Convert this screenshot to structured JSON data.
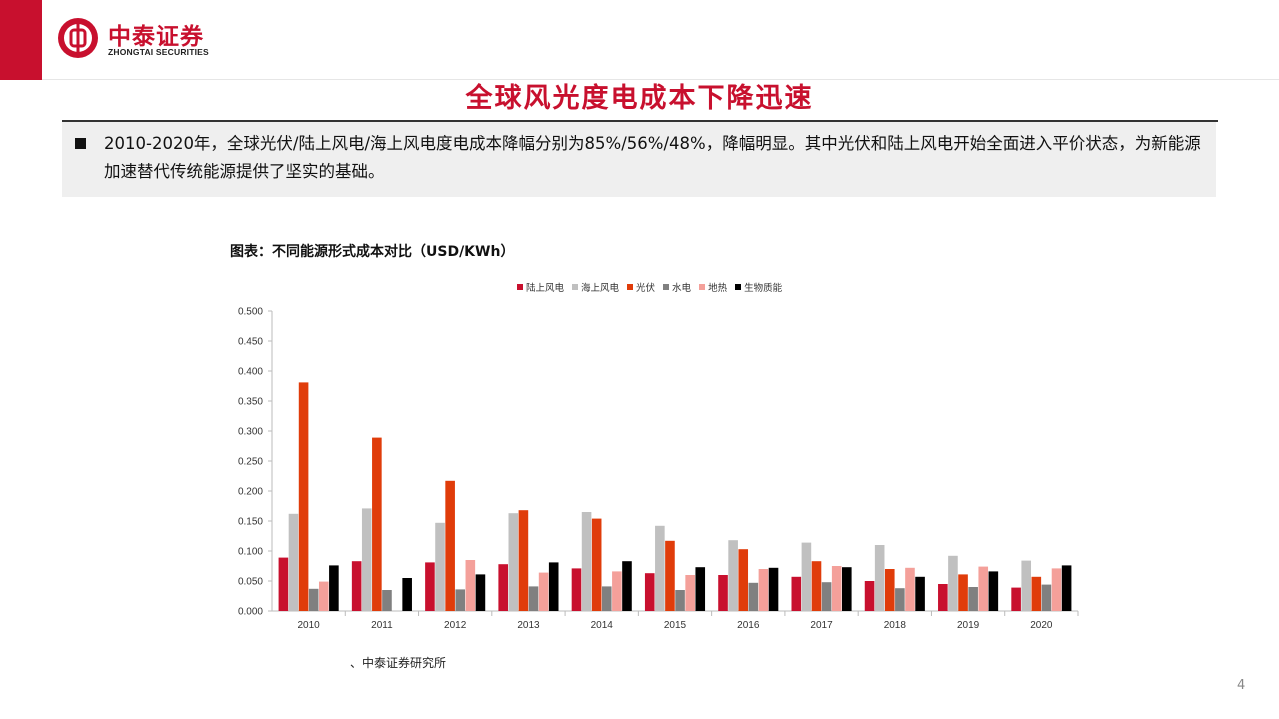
{
  "brand": {
    "name_cn": "中泰证券",
    "name_en": "ZHONGTAI SECURITIES",
    "color": "#c8102e",
    "logo_icon": "zhongtai-logo-icon"
  },
  "slide": {
    "title": "全球风光度电成本下降迅速",
    "bullet": "2010-2020年，全球光伏/陆上风电/海上风电度电成本降幅分别为85%/56%/48%，降幅明显。其中光伏和陆上风电开始全面进入平价状态，为新能源加速替代传统能源提供了坚实的基础。",
    "source": "、中泰证券研究所",
    "page_number": "4"
  },
  "chart_data": {
    "type": "bar",
    "title": "图表：不同能源形式成本对比（USD/KWh）",
    "xlabel": "",
    "ylabel": "",
    "ylim": [
      0,
      0.5
    ],
    "yticks": [
      "0.000",
      "0.050",
      "0.100",
      "0.150",
      "0.200",
      "0.250",
      "0.300",
      "0.350",
      "0.400",
      "0.450",
      "0.500"
    ],
    "categories": [
      "2010",
      "2011",
      "2012",
      "2013",
      "2014",
      "2015",
      "2016",
      "2017",
      "2018",
      "2019",
      "2020"
    ],
    "legend_position": "top",
    "grid": false,
    "series": [
      {
        "name": "陆上风电",
        "color": "#c8102e",
        "values": [
          0.089,
          0.083,
          0.081,
          0.078,
          0.071,
          0.063,
          0.06,
          0.057,
          0.05,
          0.045,
          0.039
        ]
      },
      {
        "name": "海上风电",
        "color": "#c0c0c0",
        "values": [
          0.162,
          0.171,
          0.147,
          0.163,
          0.165,
          0.142,
          0.118,
          0.114,
          0.11,
          0.092,
          0.084
        ]
      },
      {
        "name": "光伏",
        "color": "#e03c0a",
        "values": [
          0.381,
          0.289,
          0.217,
          0.168,
          0.154,
          0.117,
          0.103,
          0.083,
          0.07,
          0.061,
          0.057
        ]
      },
      {
        "name": "水电",
        "color": "#808080",
        "values": [
          0.037,
          0.035,
          0.036,
          0.041,
          0.041,
          0.035,
          0.047,
          0.048,
          0.038,
          0.04,
          0.044
        ]
      },
      {
        "name": "地热",
        "color": "#f4a09a",
        "values": [
          0.049,
          0.0,
          0.085,
          0.064,
          0.066,
          0.06,
          0.07,
          0.075,
          0.072,
          0.074,
          0.071
        ]
      },
      {
        "name": "生物质能",
        "color": "#000000",
        "values": [
          0.076,
          0.055,
          0.061,
          0.081,
          0.083,
          0.073,
          0.072,
          0.073,
          0.057,
          0.066,
          0.076
        ]
      }
    ]
  }
}
